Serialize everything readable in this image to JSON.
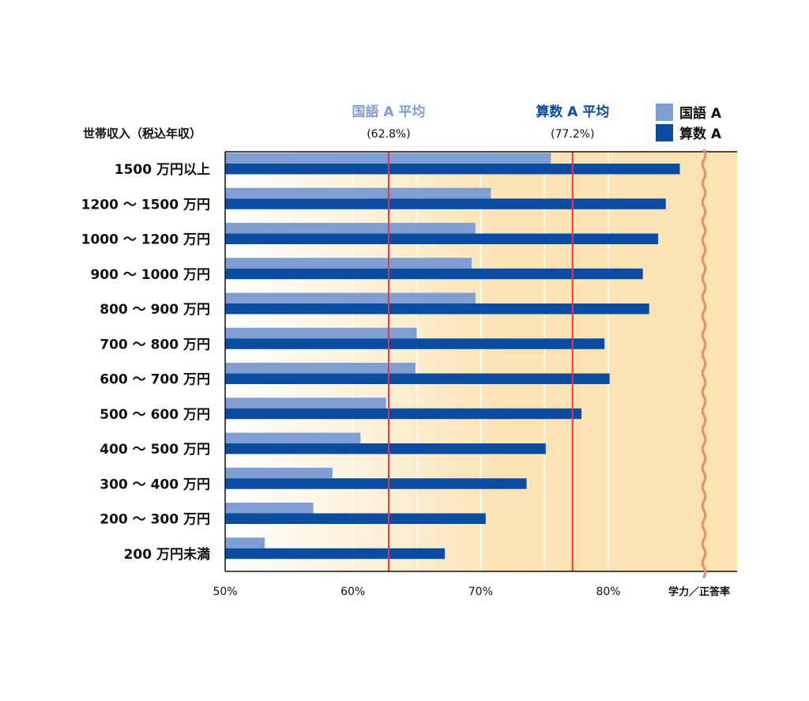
{
  "chart_data": {
    "type": "bar",
    "orientation": "horizontal",
    "ylabel": "世帯収入（税込年収）",
    "xunit_label": "学力／正答率",
    "xlim": [
      50,
      90
    ],
    "xticks": [
      "50%",
      "60%",
      "70%",
      "80%"
    ],
    "xtick_values": [
      50,
      60,
      70,
      80
    ],
    "categories": [
      "1500 万円以上",
      "1200 〜 1500 万円",
      "1000 〜 1200 万円",
      "900 〜 1000 万円",
      "800 〜 900 万円",
      "700 〜 800 万円",
      "600 〜 700 万円",
      "500 〜 600 万円",
      "400 〜 500 万円",
      "300 〜 400 万円",
      "200 〜 300 万円",
      "200 万円未満"
    ],
    "series": [
      {
        "name": "国語 A",
        "color": "#7f9fd2",
        "values": [
          75.5,
          70.8,
          69.6,
          69.3,
          69.6,
          65.0,
          64.9,
          62.6,
          60.6,
          58.4,
          56.9,
          53.1
        ]
      },
      {
        "name": "算数 A",
        "color": "#0a4da0",
        "values": [
          85.6,
          84.5,
          83.9,
          82.7,
          83.2,
          79.7,
          80.1,
          77.9,
          75.1,
          73.6,
          70.4,
          67.2
        ]
      }
    ],
    "reference_lines": [
      {
        "title": "国語 A 平均",
        "value_label": "(62.8%)",
        "value": 62.8,
        "title_color": "#7f9fd2",
        "line_color": "#e8334a"
      },
      {
        "title": "算数 A 平均",
        "value_label": "(77.2%)",
        "value": 77.2,
        "title_color": "#0a4da0",
        "line_color": "#e8334a"
      }
    ],
    "legend": {
      "placement": "top-right"
    },
    "background_color": "#fbe3b4",
    "axis_break": true
  }
}
